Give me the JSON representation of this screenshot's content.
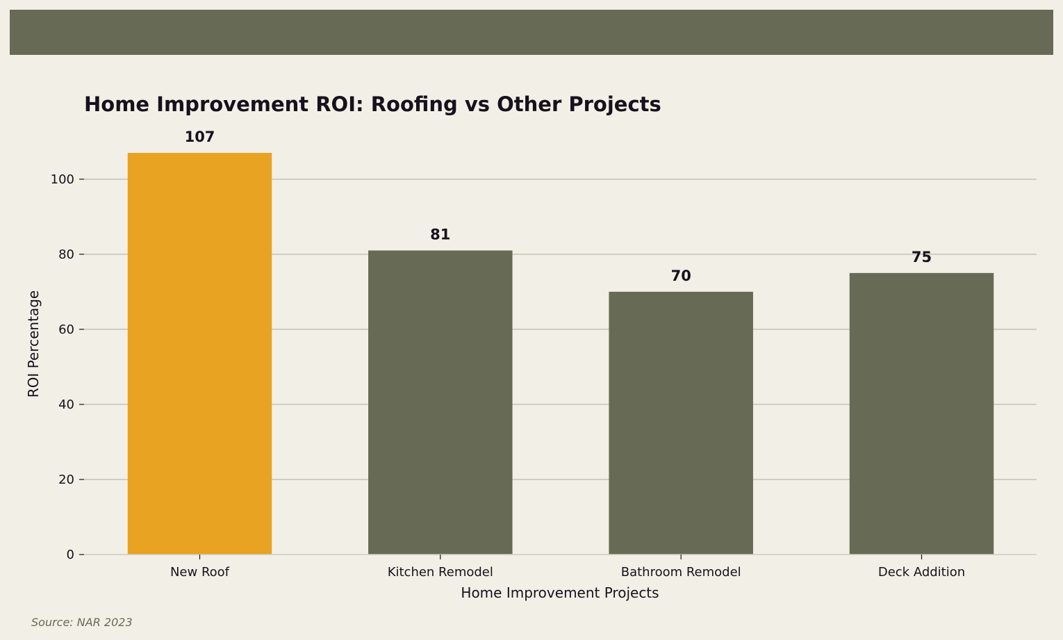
{
  "colors": {
    "background": "#f2efe6",
    "header_band": "#676b55",
    "highlight_bar": "#e8a323",
    "default_bar": "#676b55",
    "gridline": "#cfcdbf",
    "text": "#16111c",
    "source_text": "#676b55"
  },
  "chart_data": {
    "type": "bar",
    "title": "Home Improvement ROI: Roofing vs Other Projects",
    "xlabel": "Home Improvement Projects",
    "ylabel": "ROI Percentage",
    "categories": [
      "New Roof",
      "Kitchen Remodel",
      "Bathroom Remodel",
      "Deck Addition"
    ],
    "values": [
      107,
      81,
      70,
      75
    ],
    "data_labels": [
      "107",
      "81",
      "70",
      "75"
    ],
    "highlight": [
      true,
      false,
      false,
      false
    ],
    "ylim": [
      0,
      112
    ],
    "yticks": [
      0,
      20,
      40,
      60,
      80,
      100
    ],
    "grid": "horizontal",
    "legend": "none"
  },
  "footer": {
    "source": "Source: NAR 2023"
  }
}
